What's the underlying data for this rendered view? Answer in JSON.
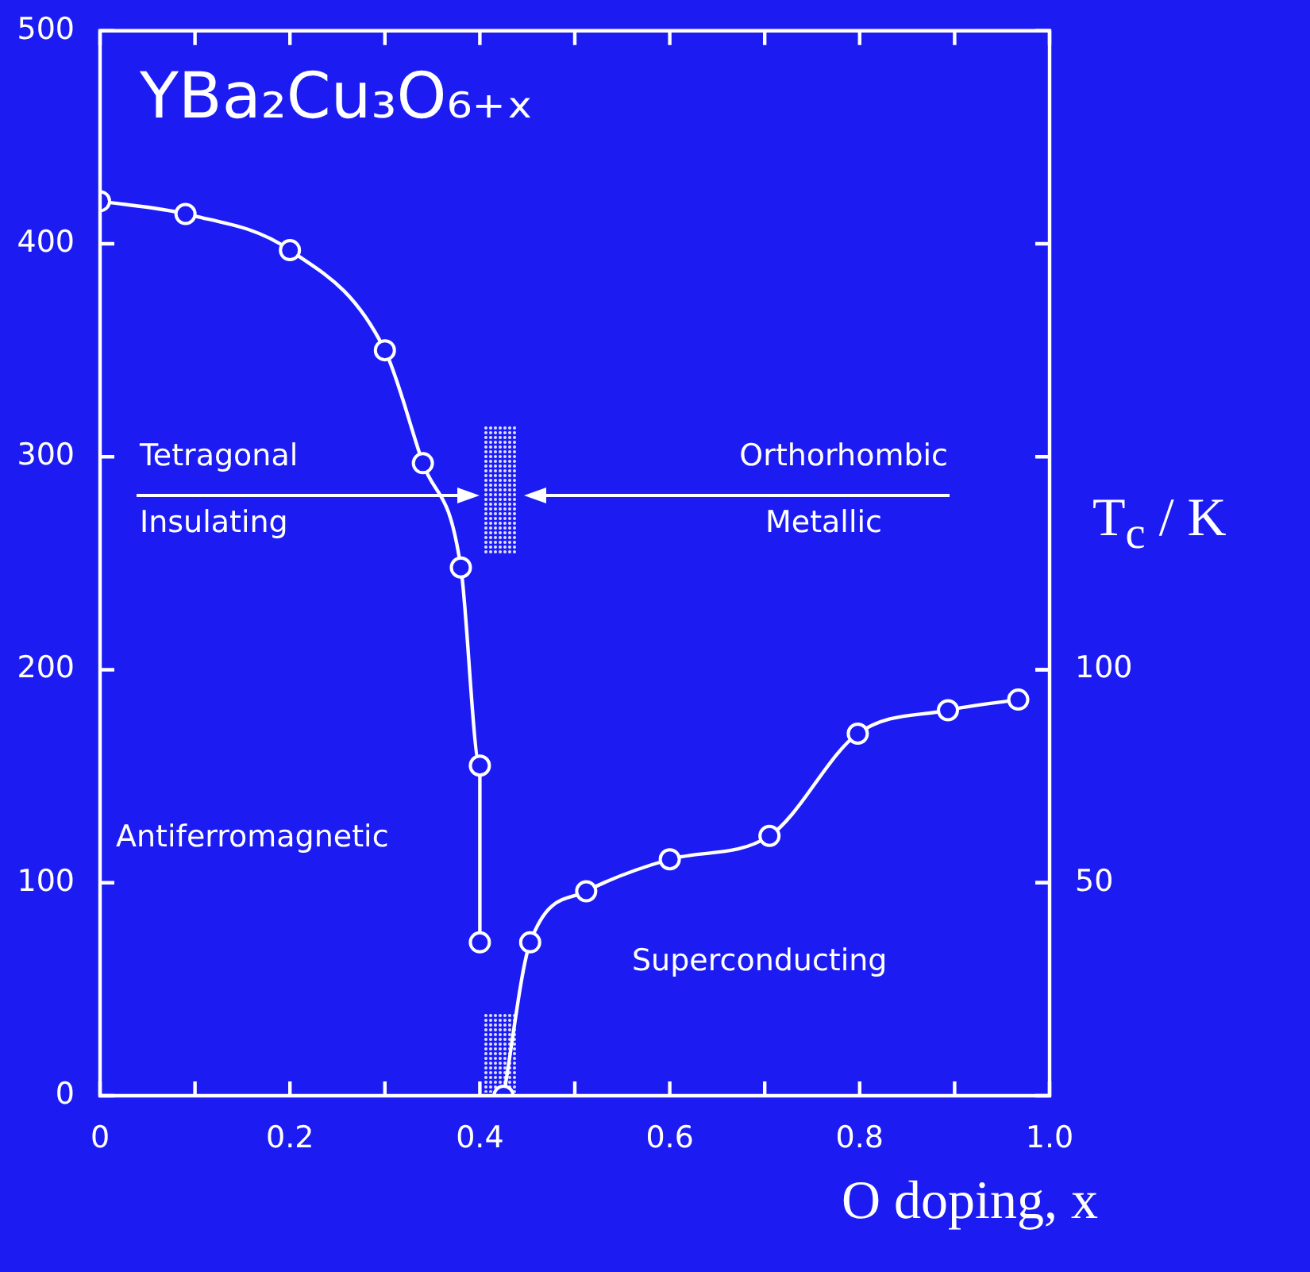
{
  "chart_data": {
    "type": "line",
    "title": "YBa₂Cu₃O₆₊ₓ",
    "xlabel": "O doping, x",
    "y2label": "T$_{c}$ / K",
    "xlim": [
      0,
      1.0
    ],
    "xticks": [
      0,
      {
        "value": 0.1,
        "label": null
      },
      0.2,
      {
        "value": 0.3,
        "label": null
      },
      0.4,
      {
        "value": 0.5,
        "label": null
      },
      0.6,
      {
        "value": 0.7,
        "label": null
      },
      0.8,
      {
        "value": 0.9,
        "label": null
      },
      {
        "value": 1.0,
        "label": "1.0"
      }
    ],
    "ylim": [
      0,
      500
    ],
    "yticks": [
      0,
      100,
      200,
      300,
      400,
      500
    ],
    "y2lim": [
      0,
      250
    ],
    "y2ticks": [
      50,
      100
    ],
    "marker": "circle",
    "line_style": "solid",
    "legend": false,
    "series": [
      {
        "color": "#ffffff",
        "x": [
          0,
          0.09,
          0.2,
          0.3,
          0.34,
          0.38,
          0.4,
          0.4
        ],
        "values": [
          420,
          414,
          397,
          350,
          297,
          248,
          155,
          72
        ]
      },
      {
        "color": "#ffffff",
        "axis": "y2",
        "x": [
          0.425,
          0.453,
          0.512,
          0.6,
          0.705,
          0.798,
          0.893,
          0.967
        ],
        "values": [
          0,
          36,
          48,
          55.5,
          61,
          85,
          90.5,
          93
        ]
      }
    ],
    "annotations": [
      "Tetragonal",
      "Insulating",
      "Orthorhombic",
      "Metallic",
      "Antiferromagnetic",
      "Superconducting"
    ]
  }
}
